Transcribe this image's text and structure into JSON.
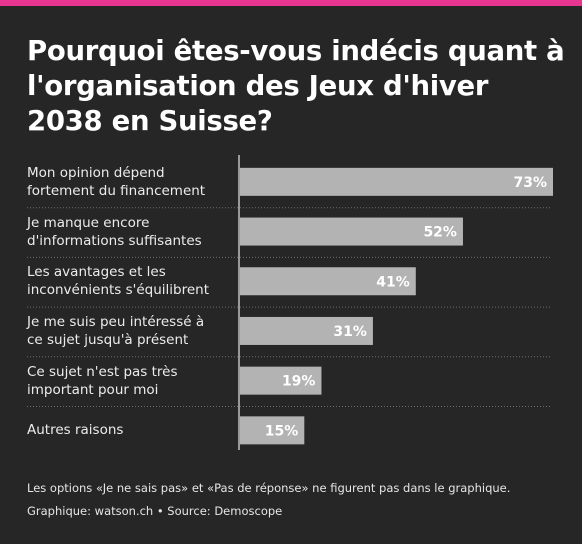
{
  "colors": {
    "background": "#262626",
    "top_bar": "#e8358f",
    "bar_fill": "#b3b3b3",
    "bar_label": "#ffffff",
    "text": "#ffffff",
    "axis_line": "#9a9a9a",
    "row_divider": "#6e6e6e"
  },
  "chart_data": {
    "type": "bar",
    "orientation": "horizontal",
    "title": "Pourquoi êtes-vous indécis quant à l'organisation des Jeux d'hiver 2038 en Suisse?",
    "categories": [
      "Mon opinion dépend\nfortement du financement",
      "Je manque encore\nd'informations suffisantes",
      "Les avantages et les\ninconvénients s'équilibrent",
      "Je me suis peu intéressé à\nce sujet jusqu'à présent",
      "Ce sujet n'est pas très\nimportant pour moi",
      "Autres raisons"
    ],
    "values": [
      73,
      52,
      41,
      31,
      19,
      15
    ],
    "value_labels": [
      "73%",
      "52%",
      "41%",
      "31%",
      "19%",
      "15%"
    ],
    "unit": "%",
    "xlim": [
      0,
      73
    ],
    "grid": false,
    "legend": "none"
  },
  "footnote": "Les options «Je ne sais pas» et «Pas de réponse» ne figurent pas dans le graphique.",
  "source_line": "Graphique: watson.ch • Source: Demoscope"
}
